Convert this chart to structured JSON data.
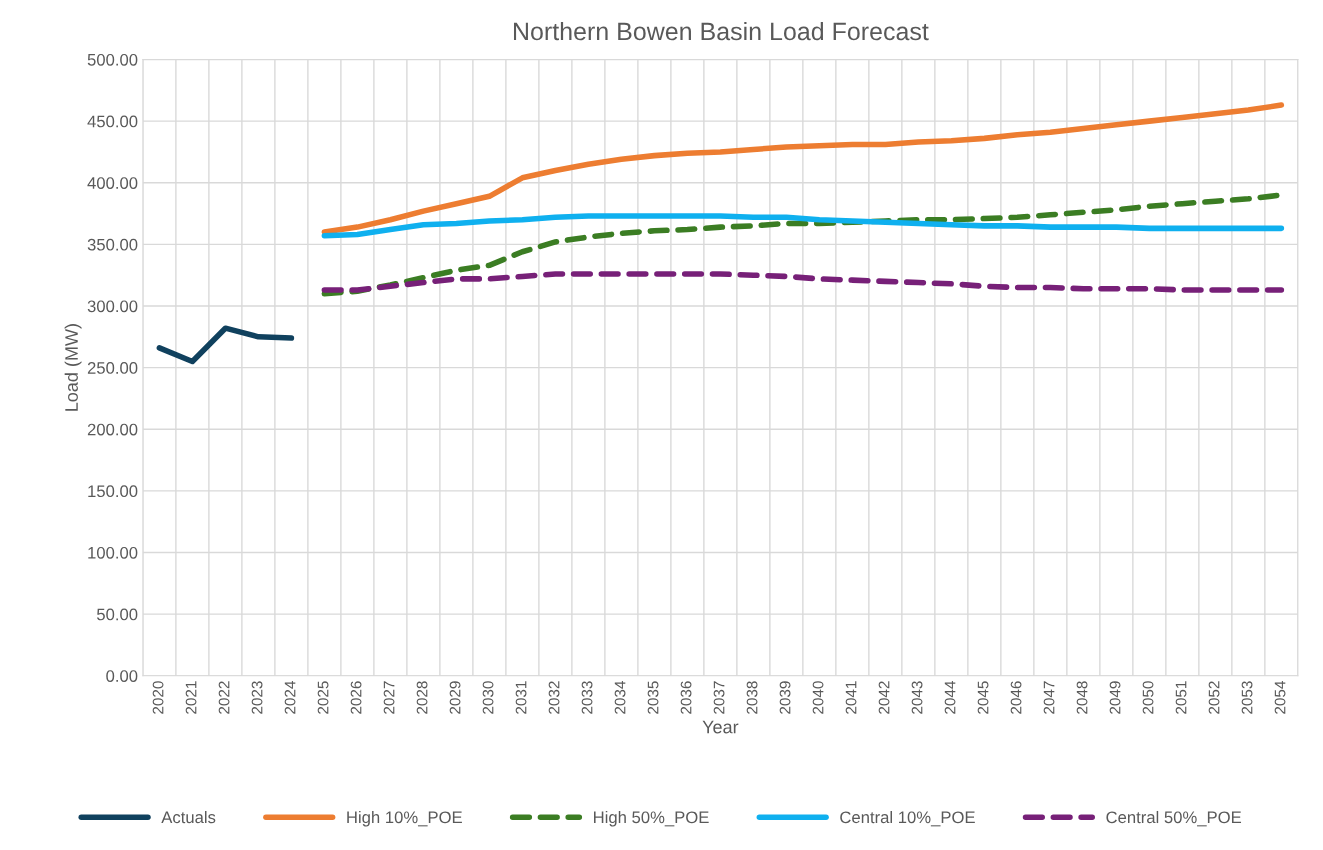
{
  "chart_data": {
    "type": "line",
    "title": "Northern Bowen Basin Load Forecast",
    "xlabel": "Year",
    "ylabel": "Load (MW)",
    "categories": [
      "2020",
      "2021",
      "2022",
      "2023",
      "2024",
      "2025",
      "2026",
      "2027",
      "2028",
      "2029",
      "2030",
      "2031",
      "2032",
      "2033",
      "2034",
      "2035",
      "2036",
      "2037",
      "2038",
      "2039",
      "2040",
      "2041",
      "2042",
      "2043",
      "2044",
      "2045",
      "2046",
      "2047",
      "2048",
      "2049",
      "2050",
      "2051",
      "2052",
      "2053",
      "2054"
    ],
    "ylim": [
      0,
      500
    ],
    "yticks": [
      {
        "value": 0,
        "label": "0.00"
      },
      {
        "value": 50,
        "label": "50.00"
      },
      {
        "value": 100,
        "label": "100.00"
      },
      {
        "value": 150,
        "label": "150.00"
      },
      {
        "value": 200,
        "label": "200.00"
      },
      {
        "value": 250,
        "label": "250.00"
      },
      {
        "value": 300,
        "label": "300.00"
      },
      {
        "value": 350,
        "label": "350.00"
      },
      {
        "value": 400,
        "label": "400.00"
      },
      {
        "value": 450,
        "label": "450.00"
      },
      {
        "value": 500,
        "label": "500.00"
      }
    ],
    "grid": true,
    "legend": "bottom",
    "marker": "none",
    "series": [
      {
        "name": "Actuals",
        "color": "#10415e",
        "line_style": "solid",
        "values": [
          266,
          255,
          282,
          275,
          274,
          null,
          null,
          null,
          null,
          null,
          null,
          null,
          null,
          null,
          null,
          null,
          null,
          null,
          null,
          null,
          null,
          null,
          null,
          null,
          null,
          null,
          null,
          null,
          null,
          null,
          null,
          null,
          null,
          null,
          null
        ]
      },
      {
        "name": "High 10%_POE",
        "color": "#ed7d31",
        "line_style": "solid",
        "values": [
          null,
          null,
          null,
          null,
          null,
          360,
          364,
          370,
          377,
          383,
          389,
          404,
          410,
          415,
          419,
          422,
          424,
          425,
          427,
          429,
          430,
          431,
          431,
          433,
          434,
          436,
          439,
          441,
          444,
          447,
          450,
          453,
          456,
          459,
          463
        ]
      },
      {
        "name": "High 50%_POE",
        "color": "#3b7d23",
        "line_style": "dashed",
        "values": [
          null,
          null,
          null,
          null,
          null,
          310,
          312,
          317,
          323,
          329,
          333,
          344,
          352,
          356,
          359,
          361,
          362,
          364,
          365,
          367,
          367,
          368,
          369,
          370,
          370,
          371,
          372,
          374,
          376,
          378,
          381,
          383,
          385,
          387,
          390
        ]
      },
      {
        "name": "Central 10%_POE",
        "color": "#0fb0ef",
        "line_style": "solid",
        "values": [
          null,
          null,
          null,
          null,
          null,
          357,
          358,
          362,
          366,
          367,
          369,
          370,
          372,
          373,
          373,
          373,
          373,
          373,
          372,
          372,
          370,
          369,
          368,
          367,
          366,
          365,
          365,
          364,
          364,
          364,
          363,
          363,
          363,
          363,
          363
        ]
      },
      {
        "name": "Central 50%_POE",
        "color": "#772078",
        "line_style": "dashed",
        "values": [
          null,
          null,
          null,
          null,
          null,
          313,
          313,
          316,
          319,
          322,
          322,
          324,
          326,
          326,
          326,
          326,
          326,
          326,
          325,
          324,
          322,
          321,
          320,
          319,
          318,
          316,
          315,
          315,
          314,
          314,
          314,
          313,
          313,
          313,
          313
        ]
      }
    ]
  }
}
